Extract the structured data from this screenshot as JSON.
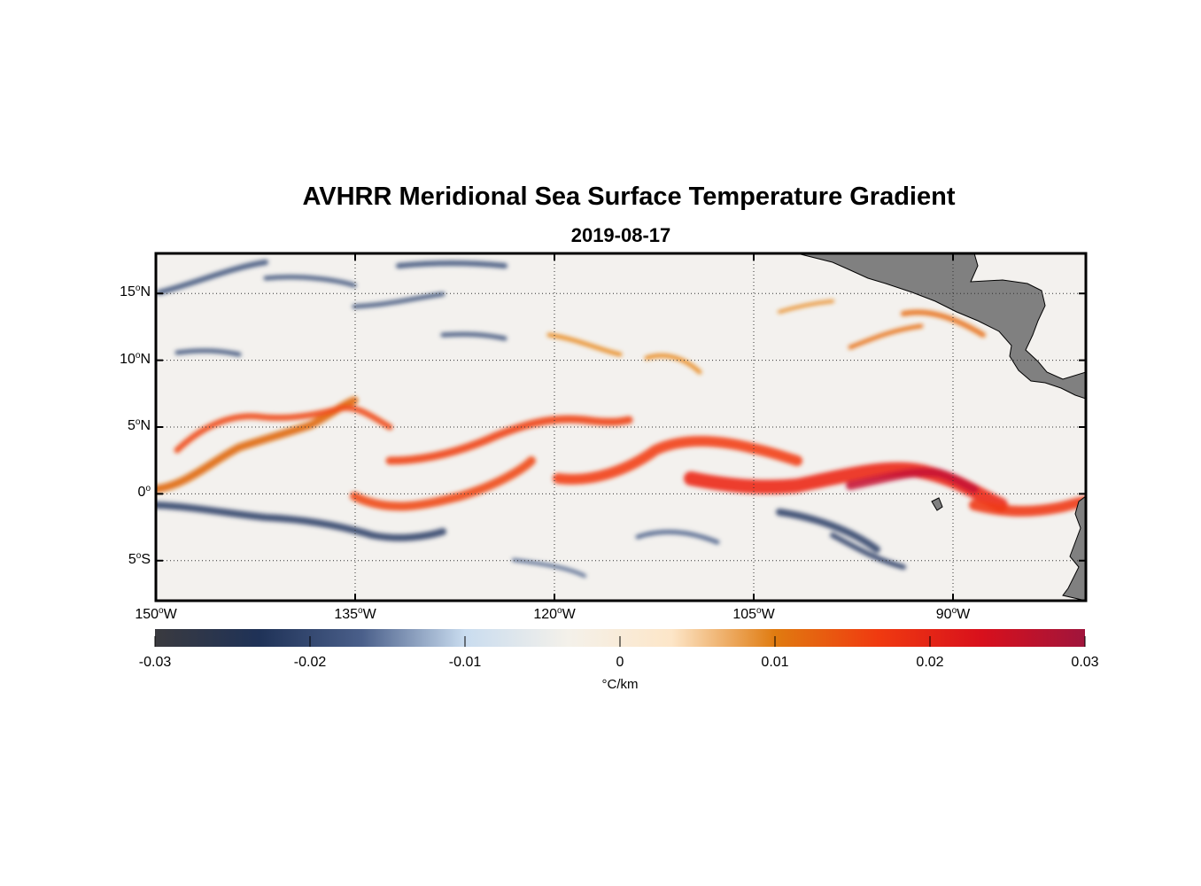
{
  "title": "AVHRR Meridional Sea Surface Temperature Gradient",
  "subtitle": "2019-08-17",
  "map": {
    "lat_ticks": [
      {
        "deg": "15",
        "hemi": "N",
        "value": 15
      },
      {
        "deg": "10",
        "hemi": "N",
        "value": 10
      },
      {
        "deg": "5",
        "hemi": "N",
        "value": 5
      },
      {
        "deg": "0",
        "hemi": "",
        "value": 0
      },
      {
        "deg": "5",
        "hemi": "S",
        "value": -5
      }
    ],
    "lon_ticks": [
      {
        "deg": "150",
        "hemi": "W",
        "value": -150
      },
      {
        "deg": "135",
        "hemi": "W",
        "value": -135
      },
      {
        "deg": "120",
        "hemi": "W",
        "value": -120
      },
      {
        "deg": "105",
        "hemi": "W",
        "value": -105
      },
      {
        "deg": "90",
        "hemi": "W",
        "value": -90
      }
    ],
    "lon_range": [
      -150,
      -80
    ],
    "lat_range": [
      -8,
      18
    ],
    "land_color": "#808080",
    "grid": "dotted"
  },
  "colorbar": {
    "ticks": [
      "-0.03",
      "-0.02",
      "-0.01",
      "0",
      "0.01",
      "0.02",
      "0.03"
    ],
    "range": [
      -0.03,
      0.03
    ],
    "unit": "°C/km",
    "colors": [
      "#3a3a3f",
      "#1f3257",
      "#4a5f8a",
      "#c9dcef",
      "#f4f1ea",
      "#fde6c8",
      "#e07b10",
      "#f03a10",
      "#d8101c",
      "#a0153c"
    ]
  }
}
